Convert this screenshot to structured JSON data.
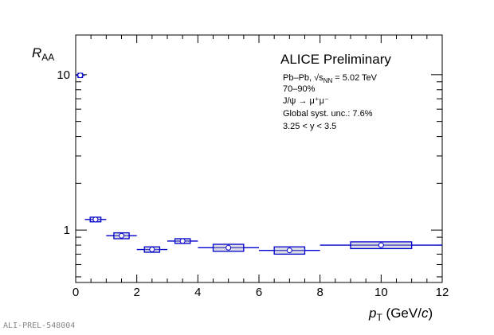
{
  "chart_data": {
    "type": "scatter",
    "title": "ALICE Preliminary",
    "annotations": [
      "Pb–Pb, √s",
      "NN",
      " = 5.02 TeV",
      "70–90%",
      "J/ψ → μ⁺μ⁻",
      "Global syst. unc.: 7.6%",
      " 3.25 < y < 3.5"
    ],
    "xlabel": "p_T (GeV/c)",
    "ylabel": "R_AA",
    "xlim": [
      0,
      12
    ],
    "ylim": [
      0.46,
      18
    ],
    "yscale": "log",
    "xticks": [
      0,
      2,
      4,
      6,
      8,
      10,
      12
    ],
    "yticks": [
      1,
      10
    ],
    "series": [
      {
        "name": "J/psi RAA",
        "color": "#0000cc",
        "x": [
          0.15,
          0.65,
          1.5,
          2.5,
          3.5,
          5.0,
          7.0,
          10.0
        ],
        "xlow": [
          0.0,
          0.3,
          1.0,
          2.0,
          3.0,
          4.0,
          6.0,
          8.0
        ],
        "xhigh": [
          0.3,
          1.0,
          2.0,
          3.0,
          4.0,
          6.0,
          8.0,
          12.0
        ],
        "y": [
          9.9,
          1.17,
          0.92,
          0.75,
          0.85,
          0.77,
          0.74,
          0.8
        ],
        "syst": [
          0.3,
          0.04,
          0.04,
          0.03,
          0.03,
          0.04,
          0.04,
          0.04
        ]
      }
    ],
    "grid": false
  },
  "watermark": "ALI-PREL-548004",
  "labels": {
    "ylabel_main": "R",
    "ylabel_sub": "AA",
    "xlabel_main": "p",
    "xlabel_sub": "T",
    "xlabel_unit": " (GeV/",
    "xlabel_c": "c",
    "xlabel_close": ")",
    "y_italic": "y"
  }
}
